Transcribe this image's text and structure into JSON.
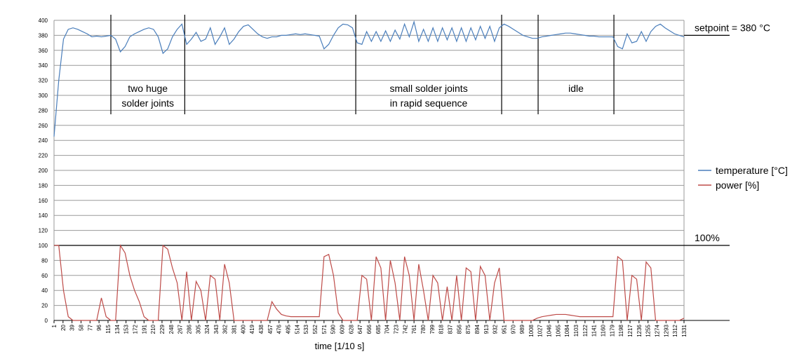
{
  "chart_data": {
    "type": "line",
    "xlabel": "time [1/10 s]",
    "x": [
      1,
      11,
      21,
      31,
      41,
      51,
      61,
      71,
      81,
      91,
      101,
      111,
      121,
      131,
      141,
      151,
      161,
      171,
      181,
      191,
      201,
      211,
      221,
      231,
      241,
      251,
      261,
      271,
      281,
      291,
      301,
      311,
      321,
      331,
      341,
      351,
      361,
      371,
      381,
      391,
      401,
      411,
      421,
      431,
      441,
      451,
      461,
      471,
      481,
      491,
      501,
      511,
      521,
      531,
      541,
      551,
      561,
      571,
      581,
      591,
      601,
      611,
      621,
      631,
      641,
      651,
      661,
      671,
      681,
      691,
      701,
      711,
      721,
      731,
      741,
      751,
      761,
      771,
      781,
      791,
      801,
      811,
      821,
      831,
      841,
      851,
      861,
      871,
      881,
      891,
      901,
      911,
      921,
      931,
      941,
      951,
      961,
      971,
      981,
      991,
      1001,
      1011,
      1021,
      1031,
      1041,
      1051,
      1061,
      1071,
      1081,
      1091,
      1101,
      1111,
      1121,
      1131,
      1141,
      1151,
      1161,
      1171,
      1181,
      1191,
      1201,
      1211,
      1221,
      1231,
      1241,
      1251,
      1261,
      1271,
      1281,
      1291,
      1301,
      1311,
      1321,
      1331
    ],
    "series": [
      {
        "name": "temperature [°C]",
        "color": "#4a7ebb",
        "values": [
          245,
          320,
          375,
          388,
          390,
          388,
          385,
          382,
          378,
          379,
          378,
          379,
          380,
          375,
          358,
          365,
          378,
          382,
          385,
          388,
          390,
          388,
          378,
          356,
          362,
          378,
          388,
          395,
          368,
          375,
          384,
          372,
          375,
          390,
          368,
          378,
          390,
          368,
          375,
          385,
          392,
          394,
          388,
          382,
          378,
          376,
          378,
          378,
          380,
          380,
          381,
          382,
          381,
          382,
          381,
          380,
          379,
          362,
          368,
          380,
          390,
          395,
          394,
          390,
          370,
          368,
          385,
          372,
          385,
          372,
          386,
          372,
          387,
          375,
          395,
          378,
          398,
          372,
          388,
          372,
          390,
          372,
          390,
          374,
          390,
          372,
          390,
          372,
          390,
          374,
          392,
          376,
          392,
          372,
          390,
          395,
          392,
          388,
          384,
          380,
          378,
          376,
          376,
          378,
          379,
          380,
          381,
          382,
          383,
          383,
          382,
          381,
          380,
          379,
          379,
          378,
          378,
          378,
          378,
          365,
          362,
          382,
          370,
          372,
          385,
          372,
          385,
          392,
          395,
          390,
          386,
          382,
          380,
          378
        ]
      },
      {
        "name": "power [%]",
        "color": "#be4b48",
        "values": [
          100,
          100,
          40,
          5,
          0,
          0,
          0,
          0,
          0,
          0,
          30,
          5,
          0,
          0,
          100,
          90,
          60,
          40,
          25,
          5,
          0,
          0,
          0,
          100,
          95,
          70,
          50,
          0,
          65,
          0,
          52,
          40,
          0,
          60,
          55,
          0,
          75,
          50,
          0,
          0,
          0,
          0,
          0,
          0,
          0,
          0,
          25,
          15,
          8,
          6,
          5,
          5,
          5,
          5,
          5,
          5,
          5,
          85,
          88,
          60,
          10,
          0,
          0,
          0,
          0,
          60,
          55,
          0,
          85,
          70,
          0,
          80,
          50,
          0,
          85,
          60,
          0,
          75,
          40,
          0,
          60,
          50,
          0,
          45,
          0,
          60,
          0,
          70,
          65,
          0,
          72,
          60,
          0,
          50,
          70,
          0,
          0,
          0,
          0,
          0,
          0,
          0,
          3,
          5,
          6,
          7,
          8,
          8,
          8,
          7,
          6,
          5,
          5,
          5,
          5,
          5,
          5,
          5,
          5,
          85,
          80,
          0,
          60,
          55,
          0,
          78,
          70,
          0,
          0,
          0,
          0,
          0,
          0,
          3
        ]
      }
    ],
    "xlim": [
      1,
      1331
    ],
    "xticks": [
      1,
      20,
      39,
      58,
      77,
      96,
      115,
      134,
      153,
      172,
      191,
      210,
      229,
      248,
      267,
      286,
      305,
      324,
      343,
      362,
      381,
      400,
      419,
      438,
      457,
      476,
      495,
      514,
      533,
      552,
      571,
      590,
      609,
      628,
      647,
      666,
      685,
      704,
      723,
      742,
      761,
      780,
      799,
      818,
      837,
      856,
      875,
      894,
      913,
      932,
      951,
      970,
      989,
      1008,
      1027,
      1046,
      1065,
      1084,
      1103,
      1122,
      1141,
      1160,
      1179,
      1198,
      1217,
      1236,
      1255,
      1274,
      1293,
      1312,
      1331
    ],
    "ylim": [
      0,
      400
    ],
    "yticks": [
      0,
      20,
      40,
      60,
      80,
      100,
      120,
      140,
      160,
      180,
      200,
      220,
      240,
      260,
      280,
      300,
      320,
      340,
      360,
      380,
      400
    ],
    "grid": true,
    "legend": "right",
    "reference_lines": [
      {
        "value": 380,
        "label": "setpoint = 380 °C",
        "span": "right"
      },
      {
        "value": 100,
        "label": "100%",
        "span": "full"
      }
    ],
    "regions": [
      {
        "x": [
          121,
          277
        ],
        "lines": [
          "two huge",
          "solder joints"
        ]
      },
      {
        "x": [
          638,
          946
        ],
        "lines": [
          "small solder joints",
          "in rapid sequence"
        ]
      },
      {
        "x": [
          1023,
          1183
        ],
        "lines": [
          "idle"
        ]
      }
    ]
  }
}
